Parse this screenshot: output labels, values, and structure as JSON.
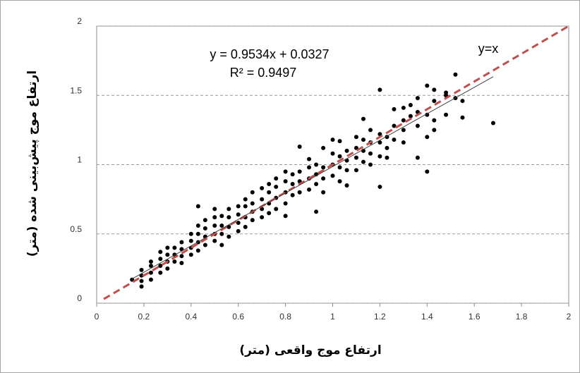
{
  "chart_data": {
    "type": "scatter",
    "x_label": "ارتفاع موج واقعی (متر)",
    "y_label": "ارتفاع موج پیش‌بینی شده (متر)",
    "annotations": [
      "y = 0.9534x + 0.0327",
      "R² = 0.9497",
      "y=x"
    ],
    "color": "#000000",
    "x": [
      0.15,
      0.19,
      0.19,
      0.19,
      0.19,
      0.23,
      0.23,
      0.23,
      0.23,
      0.27,
      0.27,
      0.27,
      0.27,
      0.3,
      0.3,
      0.3,
      0.3,
      0.33,
      0.33,
      0.33,
      0.36,
      0.36,
      0.36,
      0.36,
      0.4,
      0.4,
      0.4,
      0.4,
      0.43,
      0.43,
      0.43,
      0.43,
      0.43,
      0.46,
      0.46,
      0.46,
      0.46,
      0.5,
      0.5,
      0.5,
      0.5,
      0.5,
      0.53,
      0.53,
      0.53,
      0.53,
      0.56,
      0.56,
      0.56,
      0.56,
      0.6,
      0.6,
      0.6,
      0.6,
      0.63,
      0.63,
      0.63,
      0.63,
      0.66,
      0.66,
      0.66,
      0.66,
      0.7,
      0.7,
      0.7,
      0.7,
      0.73,
      0.73,
      0.73,
      0.73,
      0.76,
      0.76,
      0.76,
      0.76,
      0.8,
      0.8,
      0.8,
      0.8,
      0.8,
      0.83,
      0.83,
      0.83,
      0.86,
      0.86,
      0.86,
      0.86,
      0.9,
      0.9,
      0.9,
      0.9,
      0.93,
      0.93,
      0.93,
      0.93,
      0.96,
      0.96,
      0.96,
      0.96,
      1.0,
      1.0,
      1.0,
      1.0,
      1.03,
      1.03,
      1.03,
      1.03,
      1.06,
      1.06,
      1.06,
      1.06,
      1.1,
      1.1,
      1.1,
      1.1,
      1.13,
      1.13,
      1.13,
      1.13,
      1.16,
      1.16,
      1.16,
      1.16,
      1.2,
      1.2,
      1.2,
      1.2,
      1.2,
      1.23,
      1.23,
      1.23,
      1.26,
      1.26,
      1.26,
      1.3,
      1.3,
      1.3,
      1.3,
      1.33,
      1.33,
      1.36,
      1.36,
      1.36,
      1.36,
      1.4,
      1.4,
      1.4,
      1.4,
      1.43,
      1.43,
      1.43,
      1.43,
      1.48,
      1.48,
      1.48,
      1.52,
      1.52,
      1.55,
      1.55,
      1.68
    ],
    "values": [
      0.17,
      0.12,
      0.16,
      0.2,
      0.24,
      0.17,
      0.22,
      0.27,
      0.3,
      0.22,
      0.27,
      0.32,
      0.37,
      0.25,
      0.3,
      0.35,
      0.4,
      0.3,
      0.35,
      0.4,
      0.29,
      0.34,
      0.39,
      0.44,
      0.35,
      0.4,
      0.45,
      0.5,
      0.38,
      0.44,
      0.5,
      0.56,
      0.7,
      0.42,
      0.48,
      0.54,
      0.6,
      0.45,
      0.5,
      0.56,
      0.62,
      0.68,
      0.42,
      0.5,
      0.56,
      0.63,
      0.48,
      0.55,
      0.62,
      0.68,
      0.52,
      0.58,
      0.64,
      0.7,
      0.55,
      0.62,
      0.7,
      0.75,
      0.6,
      0.66,
      0.72,
      0.8,
      0.62,
      0.68,
      0.75,
      0.83,
      0.65,
      0.72,
      0.8,
      0.86,
      0.68,
      0.76,
      0.84,
      0.9,
      0.63,
      0.72,
      0.8,
      0.88,
      0.95,
      0.78,
      0.86,
      0.93,
      0.8,
      0.88,
      0.95,
      1.13,
      0.82,
      0.9,
      0.98,
      1.04,
      0.66,
      0.86,
      0.93,
      1.0,
      0.8,
      0.9,
      0.98,
      1.12,
      0.92,
      1.0,
      1.08,
      1.18,
      0.88,
      0.98,
      1.06,
      1.17,
      0.85,
      0.96,
      1.03,
      1.1,
      0.96,
      1.05,
      1.12,
      1.2,
      1.02,
      1.1,
      1.18,
      1.33,
      1.0,
      1.08,
      1.16,
      1.25,
      0.84,
      1.06,
      1.16,
      1.22,
      1.54,
      1.05,
      1.12,
      1.2,
      1.18,
      1.28,
      1.4,
      1.16,
      1.25,
      1.32,
      1.41,
      1.35,
      1.43,
      1.05,
      1.28,
      1.38,
      1.48,
      0.95,
      1.2,
      1.36,
      1.57,
      1.25,
      1.32,
      1.46,
      1.54,
      1.36,
      1.5,
      1.52,
      1.48,
      1.65,
      1.34,
      1.46,
      1.3
    ],
    "trendline": {
      "slope": 0.9534,
      "intercept": 0.0327,
      "xrange": [
        0.15,
        1.68
      ],
      "color": "#404040"
    },
    "identity_line": {
      "xrange": [
        0.03,
        2
      ],
      "color": "#c0504d"
    },
    "xlim": [
      0,
      2
    ],
    "ylim": [
      0,
      2
    ],
    "xticks": [
      0,
      0.2,
      0.4,
      0.6,
      0.8,
      1,
      1.2,
      1.4,
      1.6,
      1.8,
      2
    ],
    "yticks": [
      0,
      0.5,
      1,
      1.5,
      2
    ],
    "grid_y": true
  }
}
